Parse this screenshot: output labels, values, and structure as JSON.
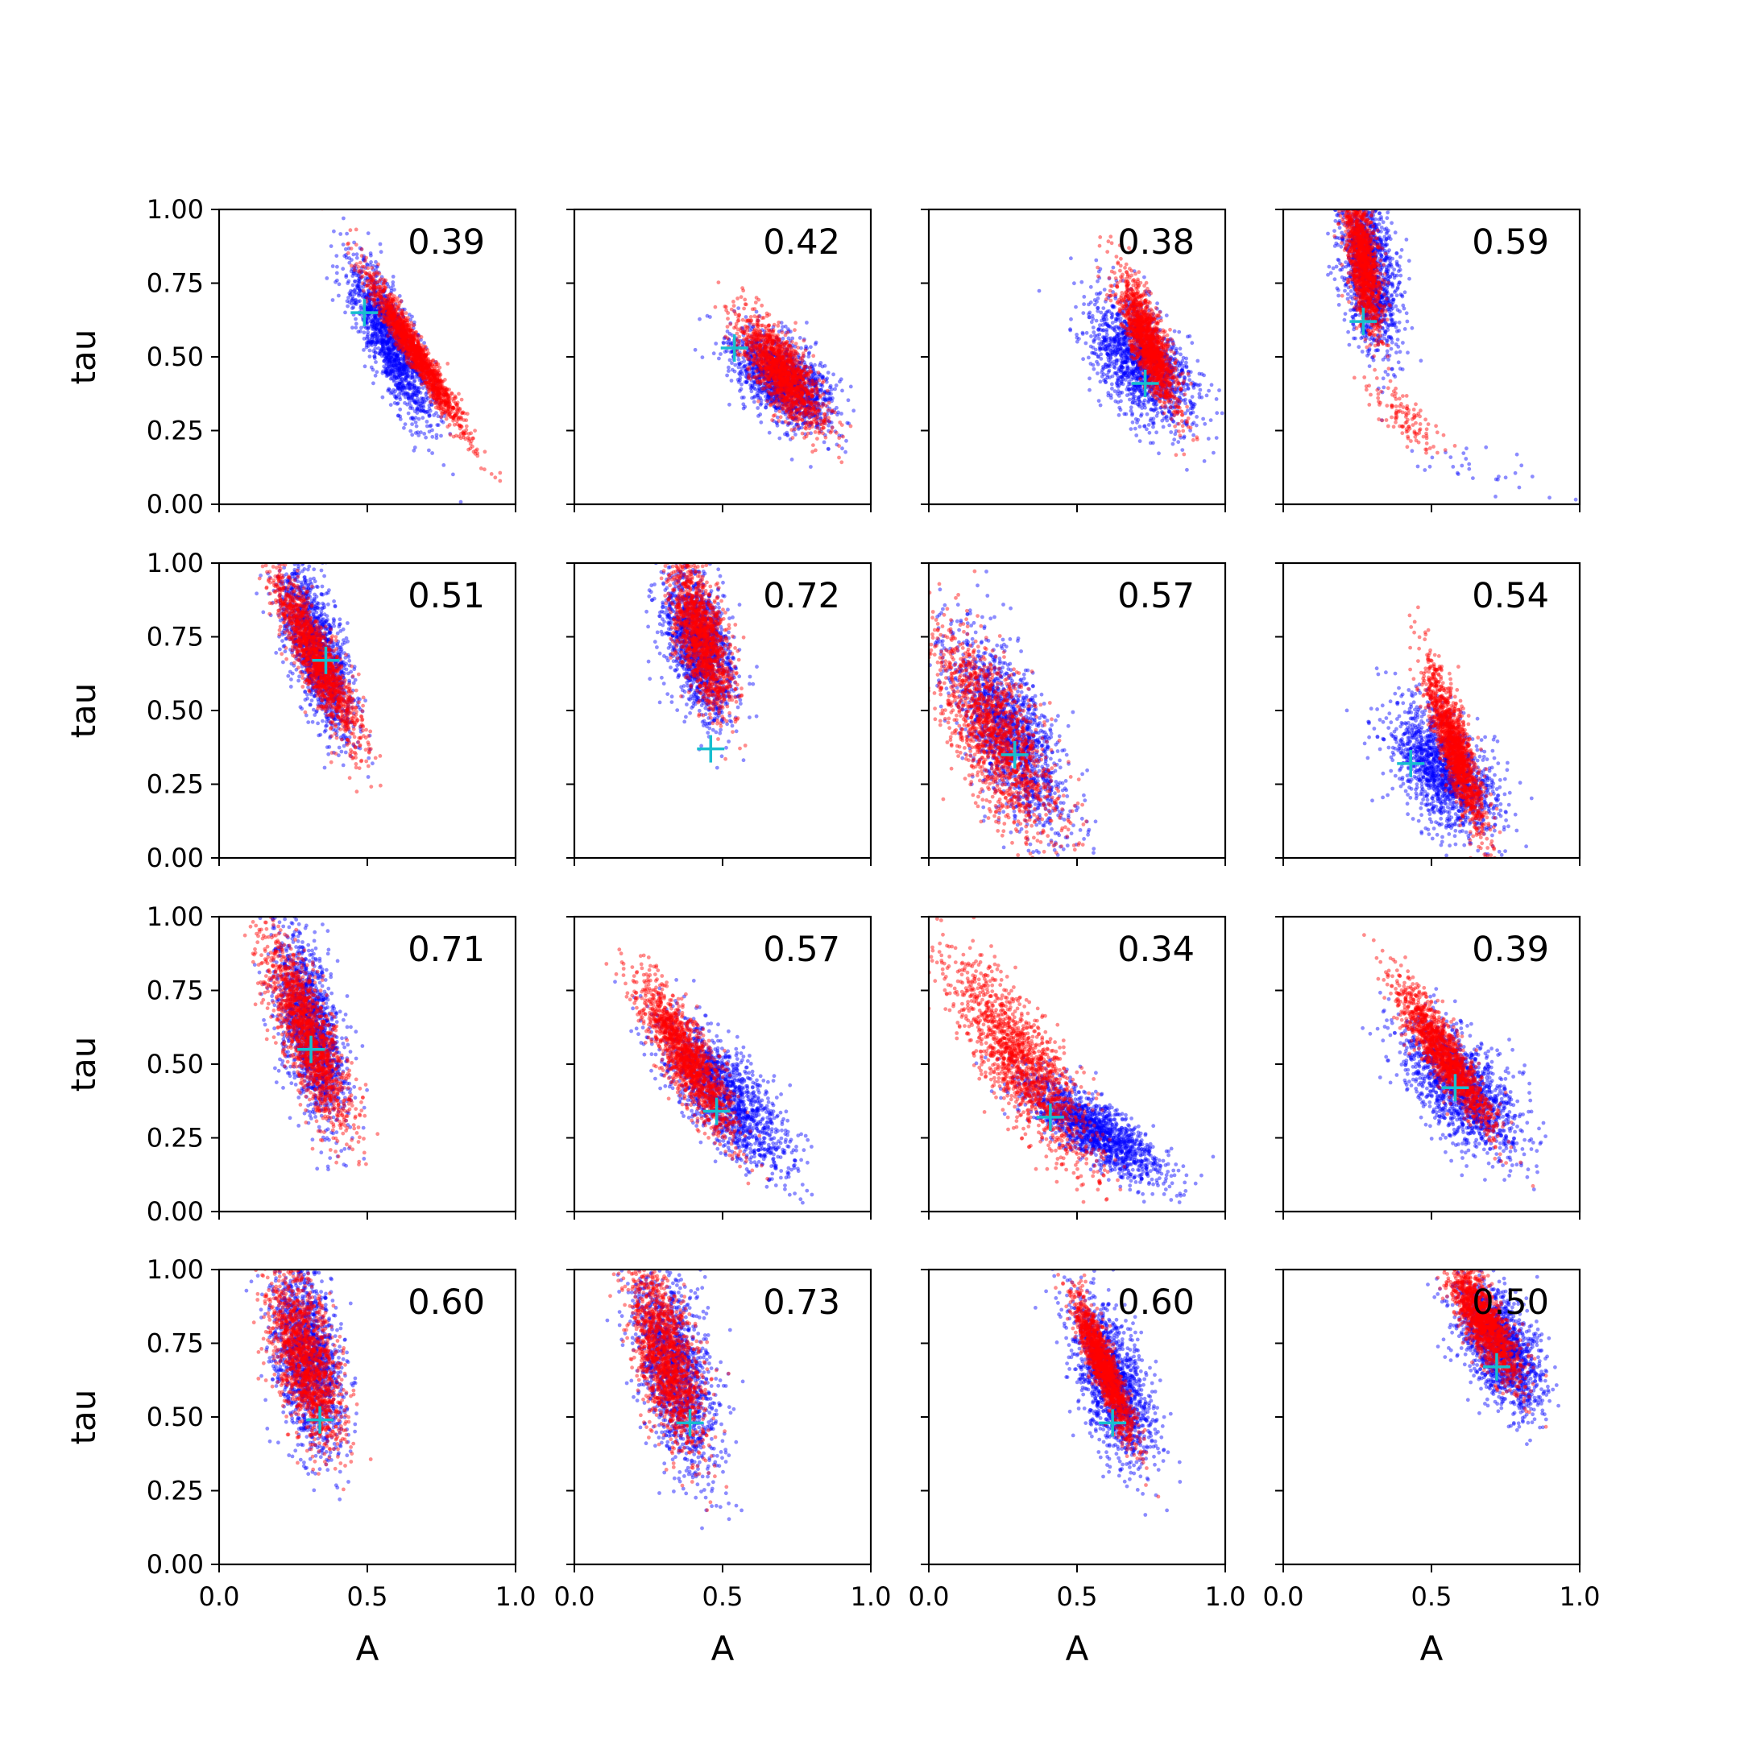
{
  "figure": {
    "rows": 4,
    "cols": 4,
    "xlabel": "A",
    "ylabel": "tau",
    "xlim": [
      0,
      1
    ],
    "ylim": [
      0,
      1
    ],
    "x_ticks": [
      "0.0",
      "0.5",
      "1.0"
    ],
    "y_ticks": [
      "0.00",
      "0.25",
      "0.50",
      "0.75",
      "1.00"
    ],
    "grid": false,
    "colors": {
      "series_a": "#0000ff",
      "series_b": "#ff0000",
      "marker": "#17becf"
    }
  },
  "chart_data": [
    {
      "type": "scatter",
      "annotation": "0.39",
      "marker": {
        "x": 0.49,
        "y": 0.65
      },
      "series": [
        {
          "color": "#0000ff",
          "clouds": [
            {
              "cx": 0.58,
              "cy": 0.55,
              "sx": 0.07,
              "sy": 0.13,
              "rho": -0.78,
              "n": 1500
            }
          ]
        },
        {
          "color": "#ff0000",
          "clouds": [
            {
              "cx": 0.66,
              "cy": 0.52,
              "sx": 0.085,
              "sy": 0.14,
              "rho": -0.97,
              "n": 1500
            }
          ]
        }
      ]
    },
    {
      "type": "scatter",
      "annotation": "0.42",
      "marker": {
        "x": 0.54,
        "y": 0.53
      },
      "series": [
        {
          "color": "#0000ff",
          "clouds": [
            {
              "cx": 0.7,
              "cy": 0.42,
              "sx": 0.08,
              "sy": 0.08,
              "rho": -0.5,
              "n": 1500
            }
          ]
        },
        {
          "color": "#ff0000",
          "clouds": [
            {
              "cx": 0.7,
              "cy": 0.45,
              "sx": 0.07,
              "sy": 0.09,
              "rho": -0.75,
              "n": 1500
            }
          ]
        }
      ]
    },
    {
      "type": "scatter",
      "annotation": "0.38",
      "marker": {
        "x": 0.73,
        "y": 0.41
      },
      "series": [
        {
          "color": "#0000ff",
          "clouds": [
            {
              "cx": 0.72,
              "cy": 0.48,
              "sx": 0.09,
              "sy": 0.11,
              "rho": -0.55,
              "n": 1500
            }
          ]
        },
        {
          "color": "#ff0000",
          "clouds": [
            {
              "cx": 0.74,
              "cy": 0.55,
              "sx": 0.05,
              "sy": 0.11,
              "rho": -0.8,
              "n": 1500
            }
          ]
        }
      ]
    },
    {
      "type": "scatter",
      "annotation": "0.59",
      "marker": {
        "x": 0.27,
        "y": 0.62
      },
      "series": [
        {
          "color": "#0000ff",
          "clouds": [
            {
              "cx": 0.29,
              "cy": 0.8,
              "sx": 0.05,
              "sy": 0.14,
              "rho": -0.4,
              "n": 1400
            },
            {
              "cx": 0.68,
              "cy": 0.12,
              "sx": 0.12,
              "sy": 0.05,
              "rho": -0.7,
              "n": 30
            }
          ]
        },
        {
          "color": "#ff0000",
          "clouds": [
            {
              "cx": 0.27,
              "cy": 0.82,
              "sx": 0.03,
              "sy": 0.12,
              "rho": -0.6,
              "n": 1300
            },
            {
              "cx": 0.42,
              "cy": 0.28,
              "sx": 0.06,
              "sy": 0.07,
              "rho": -0.8,
              "n": 120
            }
          ]
        }
      ]
    },
    {
      "type": "scatter",
      "annotation": "0.51",
      "marker": {
        "x": 0.36,
        "y": 0.67
      },
      "series": [
        {
          "color": "#0000ff",
          "clouds": [
            {
              "cx": 0.33,
              "cy": 0.7,
              "sx": 0.06,
              "sy": 0.14,
              "rho": -0.65,
              "n": 1500
            }
          ]
        },
        {
          "color": "#ff0000",
          "clouds": [
            {
              "cx": 0.33,
              "cy": 0.68,
              "sx": 0.07,
              "sy": 0.14,
              "rho": -0.88,
              "n": 1500
            }
          ]
        }
      ]
    },
    {
      "type": "scatter",
      "annotation": "0.72",
      "marker": {
        "x": 0.46,
        "y": 0.37
      },
      "series": [
        {
          "color": "#0000ff",
          "clouds": [
            {
              "cx": 0.42,
              "cy": 0.72,
              "sx": 0.06,
              "sy": 0.13,
              "rho": -0.45,
              "n": 1500
            }
          ]
        },
        {
          "color": "#ff0000",
          "clouds": [
            {
              "cx": 0.43,
              "cy": 0.75,
              "sx": 0.05,
              "sy": 0.12,
              "rho": -0.6,
              "n": 1400
            }
          ]
        }
      ]
    },
    {
      "type": "scatter",
      "annotation": "0.57",
      "marker": {
        "x": 0.29,
        "y": 0.35
      },
      "series": [
        {
          "color": "#0000ff",
          "clouds": [
            {
              "cx": 0.27,
              "cy": 0.42,
              "sx": 0.1,
              "sy": 0.17,
              "rho": -0.7,
              "n": 1500
            }
          ]
        },
        {
          "color": "#ff0000",
          "clouds": [
            {
              "cx": 0.22,
              "cy": 0.42,
              "sx": 0.11,
              "sy": 0.18,
              "rho": -0.72,
              "n": 1500
            }
          ]
        }
      ]
    },
    {
      "type": "scatter",
      "annotation": "0.54",
      "marker": {
        "x": 0.43,
        "y": 0.32
      },
      "series": [
        {
          "color": "#0000ff",
          "clouds": [
            {
              "cx": 0.54,
              "cy": 0.3,
              "sx": 0.09,
              "sy": 0.11,
              "rho": -0.5,
              "n": 1500
            }
          ]
        },
        {
          "color": "#ff0000",
          "clouds": [
            {
              "cx": 0.58,
              "cy": 0.37,
              "sx": 0.05,
              "sy": 0.14,
              "rho": -0.85,
              "n": 1500
            }
          ]
        }
      ]
    },
    {
      "type": "scatter",
      "annotation": "0.71",
      "marker": {
        "x": 0.31,
        "y": 0.55
      },
      "series": [
        {
          "color": "#0000ff",
          "clouds": [
            {
              "cx": 0.31,
              "cy": 0.62,
              "sx": 0.06,
              "sy": 0.16,
              "rho": -0.55,
              "n": 1500
            }
          ]
        },
        {
          "color": "#ff0000",
          "clouds": [
            {
              "cx": 0.3,
              "cy": 0.6,
              "sx": 0.07,
              "sy": 0.16,
              "rho": -0.78,
              "n": 1500
            }
          ]
        }
      ]
    },
    {
      "type": "scatter",
      "annotation": "0.57",
      "marker": {
        "x": 0.48,
        "y": 0.34
      },
      "series": [
        {
          "color": "#0000ff",
          "clouds": [
            {
              "cx": 0.5,
              "cy": 0.4,
              "sx": 0.11,
              "sy": 0.13,
              "rho": -0.75,
              "n": 1500
            }
          ]
        },
        {
          "color": "#ff0000",
          "clouds": [
            {
              "cx": 0.38,
              "cy": 0.52,
              "sx": 0.08,
              "sy": 0.13,
              "rho": -0.85,
              "n": 1500
            }
          ]
        }
      ]
    },
    {
      "type": "scatter",
      "annotation": "0.34",
      "marker": {
        "x": 0.41,
        "y": 0.32
      },
      "series": [
        {
          "color": "#0000ff",
          "clouds": [
            {
              "cx": 0.55,
              "cy": 0.28,
              "sx": 0.12,
              "sy": 0.09,
              "rho": -0.8,
              "n": 1500
            }
          ]
        },
        {
          "color": "#ff0000",
          "clouds": [
            {
              "cx": 0.32,
              "cy": 0.5,
              "sx": 0.12,
              "sy": 0.17,
              "rho": -0.82,
              "n": 1500
            }
          ]
        }
      ]
    },
    {
      "type": "scatter",
      "annotation": "0.39",
      "marker": {
        "x": 0.58,
        "y": 0.42
      },
      "series": [
        {
          "color": "#0000ff",
          "clouds": [
            {
              "cx": 0.6,
              "cy": 0.42,
              "sx": 0.1,
              "sy": 0.11,
              "rho": -0.6,
              "n": 1500
            }
          ]
        },
        {
          "color": "#ff0000",
          "clouds": [
            {
              "cx": 0.55,
              "cy": 0.52,
              "sx": 0.08,
              "sy": 0.12,
              "rho": -0.9,
              "n": 1500
            }
          ]
        }
      ]
    },
    {
      "type": "scatter",
      "annotation": "0.60",
      "marker": {
        "x": 0.34,
        "y": 0.49
      },
      "series": [
        {
          "color": "#0000ff",
          "clouds": [
            {
              "cx": 0.3,
              "cy": 0.7,
              "sx": 0.06,
              "sy": 0.16,
              "rho": -0.4,
              "n": 1500
            }
          ]
        },
        {
          "color": "#ff0000",
          "clouds": [
            {
              "cx": 0.29,
              "cy": 0.7,
              "sx": 0.06,
              "sy": 0.15,
              "rho": -0.6,
              "n": 1500
            }
          ]
        }
      ]
    },
    {
      "type": "scatter",
      "annotation": "0.73",
      "marker": {
        "x": 0.39,
        "y": 0.48
      },
      "series": [
        {
          "color": "#0000ff",
          "clouds": [
            {
              "cx": 0.34,
              "cy": 0.66,
              "sx": 0.07,
              "sy": 0.17,
              "rho": -0.5,
              "n": 1500
            }
          ]
        },
        {
          "color": "#ff0000",
          "clouds": [
            {
              "cx": 0.31,
              "cy": 0.7,
              "sx": 0.06,
              "sy": 0.15,
              "rho": -0.6,
              "n": 1500
            }
          ]
        }
      ]
    },
    {
      "type": "scatter",
      "annotation": "0.60",
      "marker": {
        "x": 0.62,
        "y": 0.48
      },
      "series": [
        {
          "color": "#0000ff",
          "clouds": [
            {
              "cx": 0.62,
              "cy": 0.62,
              "sx": 0.07,
              "sy": 0.14,
              "rho": -0.6,
              "n": 1500
            }
          ]
        },
        {
          "color": "#ff0000",
          "clouds": [
            {
              "cx": 0.59,
              "cy": 0.67,
              "sx": 0.05,
              "sy": 0.12,
              "rho": -0.9,
              "n": 1500
            }
          ]
        }
      ]
    },
    {
      "type": "scatter",
      "annotation": "0.50",
      "marker": {
        "x": 0.72,
        "y": 0.67
      },
      "series": [
        {
          "color": "#0000ff",
          "clouds": [
            {
              "cx": 0.73,
              "cy": 0.74,
              "sx": 0.07,
              "sy": 0.11,
              "rho": -0.55,
              "n": 1500
            }
          ]
        },
        {
          "color": "#ff0000",
          "clouds": [
            {
              "cx": 0.68,
              "cy": 0.82,
              "sx": 0.06,
              "sy": 0.1,
              "rho": -0.8,
              "n": 1500
            }
          ]
        }
      ]
    }
  ]
}
